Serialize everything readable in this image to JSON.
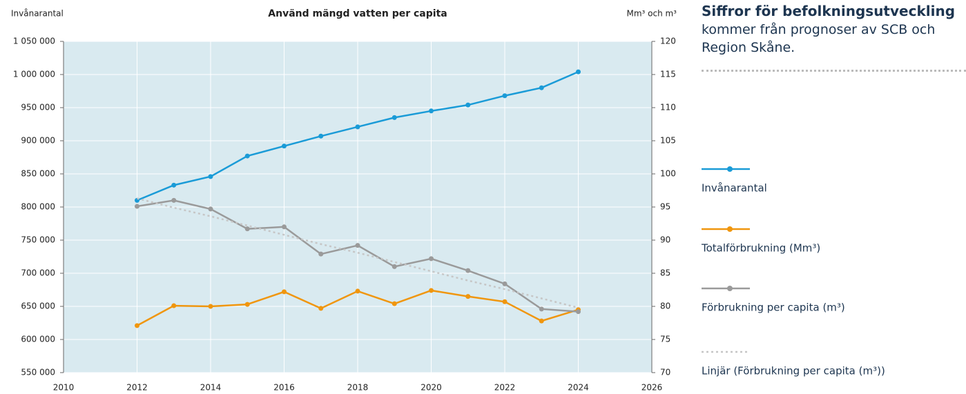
{
  "chart_data": {
    "type": "line",
    "title": "Använd mängd vatten per capita",
    "y_label": "Invånarantal",
    "y2_label": "Mm³ och m³",
    "x": [
      2012,
      2013,
      2014,
      2015,
      2016,
      2017,
      2018,
      2019,
      2020,
      2021,
      2022,
      2023,
      2024
    ],
    "xlim": [
      2010,
      2026
    ],
    "xticks": [
      2010,
      2012,
      2014,
      2016,
      2018,
      2020,
      2022,
      2024,
      2026
    ],
    "ylim": [
      550000,
      1050000
    ],
    "yticks": [
      {
        "value": 550000,
        "label": "550 000"
      },
      {
        "value": 600000,
        "label": "600 000"
      },
      {
        "value": 650000,
        "label": "650 000"
      },
      {
        "value": 700000,
        "label": "700 000"
      },
      {
        "value": 750000,
        "label": "750 000"
      },
      {
        "value": 800000,
        "label": "800 000"
      },
      {
        "value": 850000,
        "label": "850 000"
      },
      {
        "value": 900000,
        "label": "900 000"
      },
      {
        "value": 950000,
        "label": "950 000"
      },
      {
        "value": 1000000,
        "label": "1 000 000"
      },
      {
        "value": 1050000,
        "label": "1 050 000"
      }
    ],
    "y2lim": [
      70,
      120
    ],
    "y2ticks": [
      70,
      75,
      80,
      85,
      90,
      95,
      100,
      105,
      110,
      115,
      120
    ],
    "grid": true,
    "background": "#d9eaf0",
    "series": [
      {
        "name": "Invånarantal",
        "color": "#1a9bd7",
        "axis": "y",
        "line_style": "solid",
        "markers": true,
        "values": [
          810000,
          833000,
          846000,
          877000,
          892000,
          907000,
          921000,
          935000,
          945000,
          954000,
          968000,
          980000,
          1004000
        ]
      },
      {
        "name": "Totalförbrukning (Mm³)",
        "color": "#f0960e",
        "axis": "y2",
        "line_style": "solid",
        "markers": true,
        "values": [
          77.1,
          80.1,
          80.0,
          80.3,
          82.2,
          79.7,
          82.3,
          80.4,
          82.4,
          81.5,
          80.7,
          77.8,
          79.5
        ]
      },
      {
        "name": "Förbrukning per capita (m³)",
        "color": "#9a9a9a",
        "axis": "y2",
        "line_style": "solid",
        "markers": true,
        "values": [
          95.1,
          96.0,
          94.7,
          91.7,
          92.0,
          87.9,
          89.2,
          86.0,
          87.2,
          85.4,
          83.4,
          79.6,
          79.2
        ]
      },
      {
        "name": "Linjär (Förbrukning per capita (m³))",
        "color": "#c6c6c6",
        "axis": "y2",
        "line_style": "dotted",
        "markers": false,
        "values": [
          96.3,
          94.9,
          93.6,
          92.2,
          90.8,
          89.4,
          88.1,
          86.7,
          85.3,
          83.9,
          82.6,
          81.2,
          79.8
        ]
      }
    ]
  },
  "side_note": {
    "heading": "Siffror för befolkningsutveckling",
    "text": "kommer från prognoser av SCB och Region Skåne."
  }
}
